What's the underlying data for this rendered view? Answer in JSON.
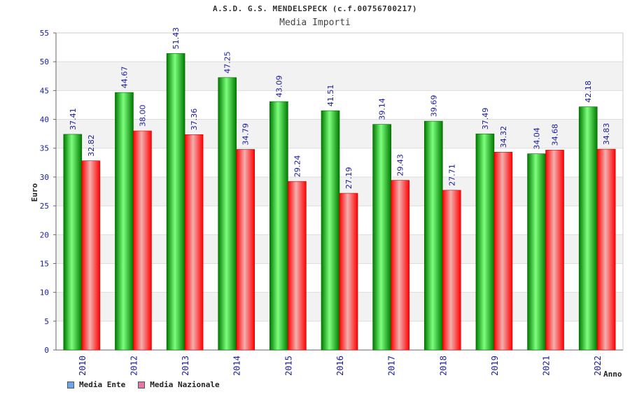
{
  "title": "A.S.D. G.S. MENDELSPECK (c.f.00756700217)",
  "subtitle": "Media Importi",
  "legend": {
    "items": [
      {
        "label": "Media Ente",
        "color": "#6aa6e8"
      },
      {
        "label": "Media Nazionale",
        "color": "#e07aa8"
      }
    ]
  },
  "colors": {
    "ente_light": "#7dff7d",
    "ente_dark": "#007a00",
    "naz_light": "#f2b0b0",
    "naz_dark": "#ff0000",
    "axis_text": "#1a1aa0",
    "value_text": "#1a1aa0",
    "band": "#f2f2f2"
  },
  "chart_data": {
    "type": "bar",
    "categories": [
      "2010",
      "2012",
      "2013",
      "2014",
      "2015",
      "2016",
      "2017",
      "2018",
      "2019",
      "2021",
      "2022"
    ],
    "series": [
      {
        "name": "Media Ente",
        "values": [
          37.41,
          44.67,
          51.43,
          47.25,
          43.09,
          41.51,
          39.14,
          39.69,
          37.49,
          34.04,
          42.18
        ],
        "labels": [
          "37.41",
          "44.67",
          "51.43",
          "47.25",
          "43.09",
          "41.51",
          "39.14",
          "39.69",
          "37.49",
          "34.04",
          "42.18"
        ]
      },
      {
        "name": "Media Nazionale",
        "values": [
          32.82,
          38.0,
          37.36,
          34.79,
          29.24,
          27.19,
          29.43,
          27.71,
          34.32,
          34.68,
          34.83
        ],
        "labels": [
          "32.82",
          "38.00",
          "37.36",
          "34.79",
          "29.24",
          "27.19",
          "29.43",
          "27.71",
          "34.32",
          "34.68",
          "34.83"
        ]
      }
    ],
    "xlabel": "Anno",
    "ylabel": "Euro",
    "ylim": [
      0,
      55
    ],
    "yticks": [
      0,
      5,
      10,
      15,
      20,
      25,
      30,
      35,
      40,
      45,
      50,
      55
    ],
    "grid": true,
    "legend_position": "bottom-left"
  }
}
